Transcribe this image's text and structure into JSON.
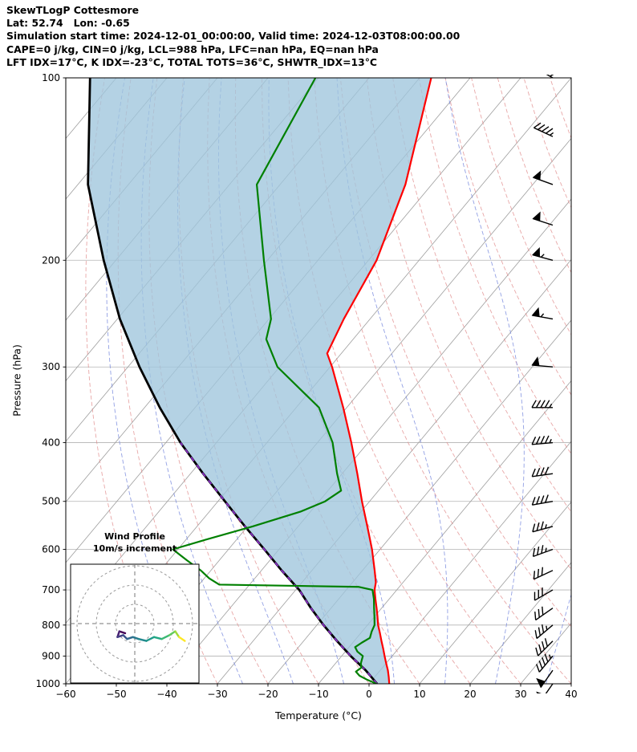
{
  "header": {
    "line1": "SkewTLogP Cottesmore",
    "line2": "Lat: 52.74   Lon: -0.65",
    "line3": "Simulation start time: 2024-12-01_00:00:00, Valid time: 2024-12-03T08:00:00.00",
    "line4": "CAPE=0 j/kg, CIN=0 j/kg, LCL=988 hPa, LFC=nan hPa, EQ=nan hPa",
    "line5": "LFT IDX=17°C, K IDX=-23°C, TOTAL TOTS=36°C, SHWTR_IDX=13°C"
  },
  "chart_data": {
    "type": "line",
    "title": "SkewTLogP Cottesmore",
    "xlabel": "Temperature (°C)",
    "ylabel": "Pressure (hPa)",
    "xlim": [
      -60,
      40
    ],
    "p_lim": [
      100,
      1000
    ],
    "axes": {
      "x_ticks": [
        -60,
        -50,
        -40,
        -30,
        -20,
        -10,
        0,
        10,
        20,
        30,
        40
      ],
      "y_ticks": [
        100,
        200,
        300,
        400,
        500,
        600,
        700,
        800,
        900,
        1000
      ],
      "grid_color": "#b3b3b3",
      "isotherm_color": "#9e9e9e",
      "isotherm_step": 10
    },
    "dry_adiabats": {
      "theta_start": -40,
      "theta_end": 160,
      "step": 10,
      "color": "#e08a8a"
    },
    "moist_adiabats": {
      "t0_start": -35,
      "t0_end": 45,
      "step": 10,
      "color": "#7788dd"
    },
    "shade_color": "#9fc5dd",
    "series": [
      {
        "name": "temperature",
        "color": "#ff0000",
        "points": [
          [
            1000,
            4.0
          ],
          [
            975,
            2.8
          ],
          [
            950,
            1.5
          ],
          [
            925,
            0.0
          ],
          [
            900,
            -1.5
          ],
          [
            875,
            -3.0
          ],
          [
            850,
            -4.6
          ],
          [
            825,
            -6.2
          ],
          [
            800,
            -7.9
          ],
          [
            775,
            -9.4
          ],
          [
            750,
            -11.0
          ],
          [
            725,
            -12.7
          ],
          [
            700,
            -14.4
          ],
          [
            680,
            -15.4
          ],
          [
            650,
            -17.6
          ],
          [
            600,
            -21.6
          ],
          [
            550,
            -26.3
          ],
          [
            500,
            -31.5
          ],
          [
            450,
            -37.0
          ],
          [
            400,
            -43.3
          ],
          [
            350,
            -50.7
          ],
          [
            300,
            -59.6
          ],
          [
            285,
            -62.8
          ],
          [
            250,
            -65.2
          ],
          [
            200,
            -68.4
          ],
          [
            150,
            -75.2
          ],
          [
            100,
            -87.7
          ]
        ]
      },
      {
        "name": "dewpoint",
        "color": "#008000",
        "points": [
          [
            1000,
            1.5
          ],
          [
            985,
            -1.0
          ],
          [
            970,
            -3.2
          ],
          [
            955,
            -4.6
          ],
          [
            940,
            -4.2
          ],
          [
            925,
            -5.0
          ],
          [
            900,
            -5.8
          ],
          [
            885,
            -7.6
          ],
          [
            870,
            -8.8
          ],
          [
            855,
            -8.2
          ],
          [
            840,
            -7.4
          ],
          [
            820,
            -8.1
          ],
          [
            800,
            -8.6
          ],
          [
            775,
            -10.0
          ],
          [
            750,
            -11.5
          ],
          [
            725,
            -13.0
          ],
          [
            700,
            -14.8
          ],
          [
            692,
            -18.0
          ],
          [
            686,
            -46.0
          ],
          [
            670,
            -49.0
          ],
          [
            650,
            -52.0
          ],
          [
            625,
            -56.5
          ],
          [
            600,
            -61.0
          ],
          [
            580,
            -56.5
          ],
          [
            550,
            -49.0
          ],
          [
            520,
            -42.0
          ],
          [
            500,
            -38.8
          ],
          [
            480,
            -37.4
          ],
          [
            450,
            -41.0
          ],
          [
            400,
            -47.0
          ],
          [
            350,
            -55.5
          ],
          [
            300,
            -70.4
          ],
          [
            270,
            -77.2
          ],
          [
            250,
            -79.6
          ],
          [
            200,
            -90.7
          ],
          [
            150,
            -104.6
          ],
          [
            100,
            -110.6
          ]
        ]
      },
      {
        "name": "parcel",
        "color": "#000000",
        "points": [
          [
            1000,
            1.6
          ],
          [
            950,
            -2.9
          ],
          [
            900,
            -8.2
          ],
          [
            850,
            -13.4
          ],
          [
            800,
            -18.7
          ],
          [
            750,
            -24.0
          ],
          [
            700,
            -29.3
          ],
          [
            650,
            -36.0
          ],
          [
            600,
            -42.9
          ],
          [
            550,
            -50.5
          ],
          [
            500,
            -58.6
          ],
          [
            450,
            -67.5
          ],
          [
            400,
            -77.1
          ],
          [
            350,
            -87.0
          ],
          [
            300,
            -97.7
          ],
          [
            250,
            -109.5
          ],
          [
            200,
            -122.4
          ],
          [
            150,
            -138.0
          ],
          [
            100,
            -155.2
          ]
        ]
      }
    ],
    "parcel_overlay_color": "#8b2fc9",
    "winds_kt": [
      {
        "p": 1000,
        "dir": 215,
        "spd": 50
      },
      {
        "p": 950,
        "dir": 215,
        "spd": 50
      },
      {
        "p": 900,
        "dir": 220,
        "spd": 45
      },
      {
        "p": 850,
        "dir": 225,
        "spd": 40
      },
      {
        "p": 800,
        "dir": 230,
        "spd": 35
      },
      {
        "p": 750,
        "dir": 235,
        "spd": 30
      },
      {
        "p": 700,
        "dir": 240,
        "spd": 30
      },
      {
        "p": 650,
        "dir": 245,
        "spd": 30
      },
      {
        "p": 600,
        "dir": 250,
        "spd": 35
      },
      {
        "p": 550,
        "dir": 255,
        "spd": 35
      },
      {
        "p": 500,
        "dir": 260,
        "spd": 40
      },
      {
        "p": 450,
        "dir": 262,
        "spd": 40
      },
      {
        "p": 400,
        "dir": 265,
        "spd": 45
      },
      {
        "p": 350,
        "dir": 270,
        "spd": 45
      },
      {
        "p": 300,
        "dir": 275,
        "spd": 50
      },
      {
        "p": 250,
        "dir": 280,
        "spd": 55
      },
      {
        "p": 200,
        "dir": 285,
        "spd": 55
      },
      {
        "p": 175,
        "dir": 288,
        "spd": 50
      },
      {
        "p": 150,
        "dir": 290,
        "spd": 50
      },
      {
        "p": 125,
        "dir": 295,
        "spd": 45
      },
      {
        "p": 100,
        "dir": 300,
        "spd": 45
      }
    ],
    "hodograph": {
      "title1": "Wind Profile",
      "title2": "10m/s increment",
      "ring_interval_ms": 10,
      "rings_ms": [
        10,
        20,
        30
      ],
      "points_uv_ms": [
        [
          -5,
          -5
        ],
        [
          -8,
          -4
        ],
        [
          -9,
          -7
        ],
        [
          -6,
          -6
        ],
        [
          -4,
          -8
        ],
        [
          -1,
          -7
        ],
        [
          2,
          -8
        ],
        [
          6,
          -9
        ],
        [
          10,
          -7
        ],
        [
          14,
          -8
        ],
        [
          18,
          -6
        ],
        [
          21,
          -4
        ],
        [
          23,
          -7
        ],
        [
          26,
          -9
        ]
      ],
      "segment_colors": [
        "#440154",
        "#482173",
        "#433e85",
        "#3b528b",
        "#31688e",
        "#2a788e",
        "#23888e",
        "#1f988b",
        "#22a884",
        "#3cb875",
        "#62ca5f",
        "#a0da39",
        "#fde725"
      ],
      "ring_color": "#999999",
      "cross_color": "#777777"
    }
  }
}
